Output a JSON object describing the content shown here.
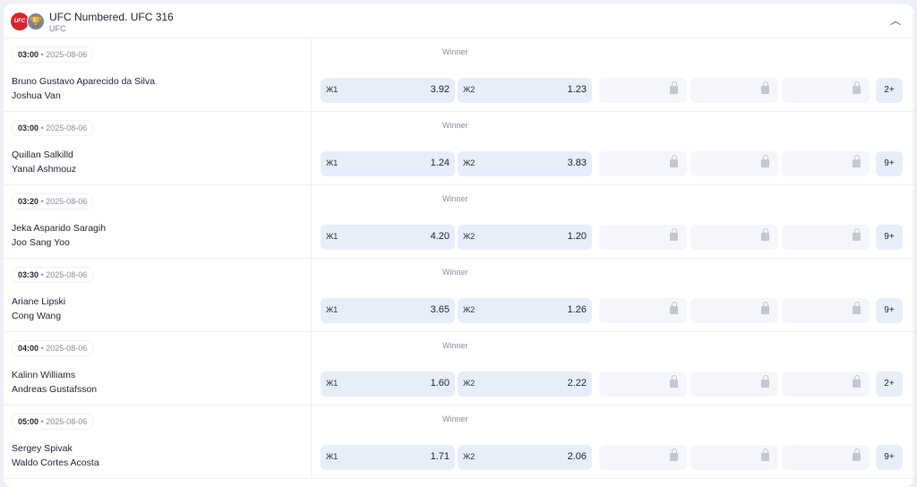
{
  "header": {
    "title": "UFC Numbered. UFC 316",
    "subtitle": "UFC",
    "logo_text": "UFC"
  },
  "market_label": "Winner",
  "events": [
    {
      "time": "03:00",
      "date": "2025-08-06",
      "p1": "Bruno Gustavo Aparecido da Silva",
      "p2": "Joshua Van",
      "o1_label": "Ж1",
      "o1": "3.92",
      "o2_label": "Ж2",
      "o2": "1.23",
      "more": "2+"
    },
    {
      "time": "03:00",
      "date": "2025-08-06",
      "p1": "Quillan Salkilld",
      "p2": "Yanal Ashmouz",
      "o1_label": "Ж1",
      "o1": "1.24",
      "o2_label": "Ж2",
      "o2": "3.83",
      "more": "9+"
    },
    {
      "time": "03:20",
      "date": "2025-08-06",
      "p1": "Jeka Asparido Saragih",
      "p2": "Joo Sang Yoo",
      "o1_label": "Ж1",
      "o1": "4.20",
      "o2_label": "Ж2",
      "o2": "1.20",
      "more": "9+"
    },
    {
      "time": "03:30",
      "date": "2025-08-06",
      "p1": "Ariane Lipski",
      "p2": "Cong Wang",
      "o1_label": "Ж1",
      "o1": "3.65",
      "o2_label": "Ж2",
      "o2": "1.26",
      "more": "9+"
    },
    {
      "time": "04:00",
      "date": "2025-08-06",
      "p1": "Kalinn Williams",
      "p2": "Andreas Gustafsson",
      "o1_label": "Ж1",
      "o1": "1.60",
      "o2_label": "Ж2",
      "o2": "2.22",
      "more": "2+"
    },
    {
      "time": "05:00",
      "date": "2025-08-06",
      "p1": "Sergey Spivak",
      "p2": "Waldo Cortes Acosta",
      "o1_label": "Ж1",
      "o1": "1.71",
      "o2_label": "Ж2",
      "o2": "2.06",
      "more": "9+"
    }
  ]
}
